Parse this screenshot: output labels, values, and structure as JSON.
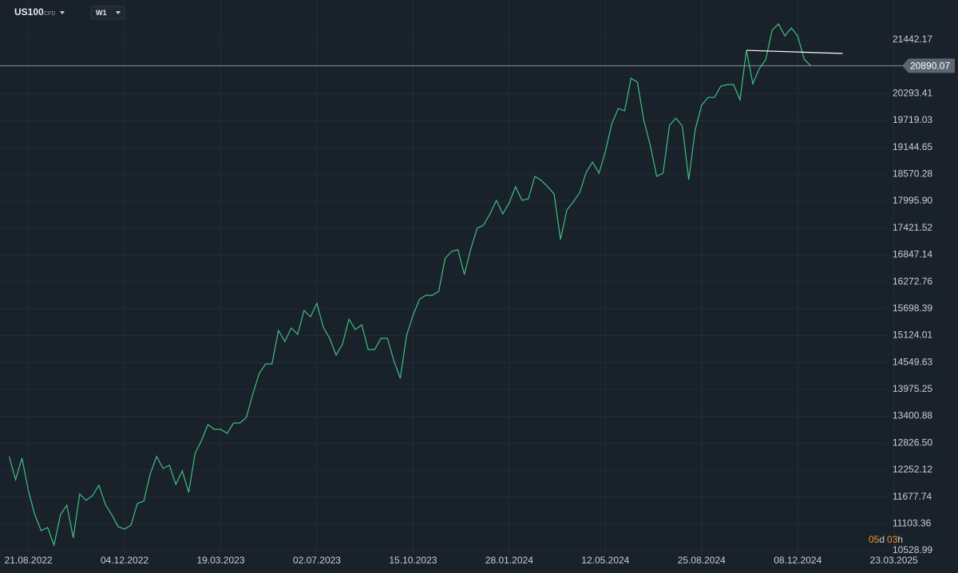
{
  "chart_data": {
    "type": "line",
    "symbol": "US100",
    "instrument_type": "CFD",
    "timeframe": "W1",
    "color": "#3fbf7f",
    "x": [
      "31.07.2022",
      "07.08.2022",
      "14.08.2022",
      "21.08.2022",
      "28.08.2022",
      "04.09.2022",
      "11.09.2022",
      "18.09.2022",
      "25.09.2022",
      "02.10.2022",
      "09.10.2022",
      "16.10.2022",
      "23.10.2022",
      "30.10.2022",
      "06.11.2022",
      "13.11.2022",
      "20.11.2022",
      "27.11.2022",
      "04.12.2022",
      "11.12.2022",
      "18.12.2022",
      "25.12.2022",
      "01.01.2023",
      "08.01.2023",
      "15.01.2023",
      "22.01.2023",
      "29.01.2023",
      "05.02.2023",
      "12.02.2023",
      "19.02.2023",
      "26.02.2023",
      "05.03.2023",
      "12.03.2023",
      "19.03.2023",
      "26.03.2023",
      "02.04.2023",
      "09.04.2023",
      "16.04.2023",
      "23.04.2023",
      "30.04.2023",
      "07.05.2023",
      "14.05.2023",
      "21.05.2023",
      "28.05.2023",
      "04.06.2023",
      "11.06.2023",
      "18.06.2023",
      "25.06.2023",
      "02.07.2023",
      "09.07.2023",
      "16.07.2023",
      "23.07.2023",
      "30.07.2023",
      "06.08.2023",
      "13.08.2023",
      "20.08.2023",
      "27.08.2023",
      "03.09.2023",
      "10.09.2023",
      "17.09.2023",
      "24.09.2023",
      "01.10.2023",
      "08.10.2023",
      "15.10.2023",
      "22.10.2023",
      "29.10.2023",
      "05.11.2023",
      "12.11.2023",
      "19.11.2023",
      "26.11.2023",
      "03.12.2023",
      "10.12.2023",
      "17.12.2023",
      "24.12.2023",
      "31.12.2023",
      "07.01.2024",
      "14.01.2024",
      "21.01.2024",
      "28.01.2024",
      "04.02.2024",
      "11.02.2024",
      "18.02.2024",
      "25.02.2024",
      "03.03.2024",
      "10.03.2024",
      "17.03.2024",
      "24.03.2024",
      "31.03.2024",
      "07.04.2024",
      "14.04.2024",
      "21.04.2024",
      "28.04.2024",
      "05.05.2024",
      "12.05.2024",
      "19.05.2024",
      "26.05.2024",
      "02.06.2024",
      "09.06.2024",
      "16.06.2024",
      "23.06.2024",
      "30.06.2024",
      "07.07.2024",
      "14.07.2024",
      "21.07.2024",
      "28.07.2024",
      "04.08.2024",
      "11.08.2024",
      "18.08.2024",
      "25.08.2024",
      "01.09.2024",
      "08.09.2024",
      "15.09.2024",
      "22.09.2024",
      "29.09.2024",
      "06.10.2024",
      "13.10.2024",
      "20.10.2024",
      "27.10.2024",
      "03.11.2024",
      "10.11.2024",
      "17.11.2024",
      "24.11.2024",
      "01.12.2024",
      "08.12.2024",
      "15.12.2024",
      "22.12.2024"
    ],
    "values": [
      12541,
      12046,
      12507,
      11808,
      11296,
      10955,
      11023,
      10648,
      11296,
      11501,
      10802,
      11740,
      11603,
      11705,
      11927,
      11518,
      11296,
      11041,
      10989,
      11075,
      11535,
      11586,
      12166,
      12541,
      12285,
      12353,
      11944,
      12234,
      11774,
      12609,
      12882,
      13223,
      13121,
      13121,
      13035,
      13257,
      13257,
      13376,
      13871,
      14314,
      14519,
      14519,
      15235,
      14996,
      15286,
      15150,
      15661,
      15525,
      15815,
      15303,
      15064,
      14706,
      14945,
      15474,
      15252,
      15354,
      14826,
      14826,
      15064,
      15064,
      14587,
      14212,
      15133,
      15559,
      15900,
      15985,
      15985,
      16070,
      16769,
      16923,
      16957,
      16428,
      16974,
      17417,
      17485,
      17724,
      18014,
      17724,
      17963,
      18304,
      18014,
      18048,
      18525,
      18440,
      18304,
      18150,
      17179,
      17809,
      17980,
      18184,
      18611,
      18832,
      18594,
      19054,
      19651,
      19975,
      19924,
      20623,
      20537,
      19719,
      19190,
      18525,
      18594,
      19617,
      19770,
      19600,
      18457,
      19514,
      20043,
      20213,
      20213,
      20452,
      20486,
      20486,
      20162,
      21219,
      20503,
      20827,
      21015,
      21646,
      21782,
      21526,
      21697,
      21526,
      21032,
      20895
    ],
    "trendline": {
      "x": [
        "13.10.2024",
        "26.01.2025"
      ],
      "values": [
        21219,
        21151
      ],
      "color": "#ffffff"
    },
    "last_price": {
      "value": 20890.07,
      "label": "20890.07"
    },
    "countdown": {
      "days": "05",
      "days_unit": "d",
      "hours": "03",
      "hours_unit": "h"
    },
    "xlim": [
      "21.07.2022",
      "01.06.2025"
    ],
    "xticks": [
      "21.08.2022",
      "04.12.2022",
      "19.03.2023",
      "02.07.2023",
      "15.10.2023",
      "28.01.2024",
      "12.05.2024",
      "25.08.2024",
      "08.12.2024",
      "23.03.2025"
    ],
    "ylim": [
      10256,
      22294
    ],
    "yticks": [
      10528.99,
      11103.36,
      11677.74,
      12252.12,
      {
        "value": 12826.5,
        "label": "12826.50"
      },
      13400.88,
      13975.25,
      14549.63,
      15124.01,
      15698.39,
      16272.76,
      16847.14,
      17421.52,
      {
        "value": 17995.9,
        "label": "17995.90"
      },
      18570.28,
      19144.65,
      19719.03,
      20293.41,
      21442.17
    ],
    "grid": true
  }
}
